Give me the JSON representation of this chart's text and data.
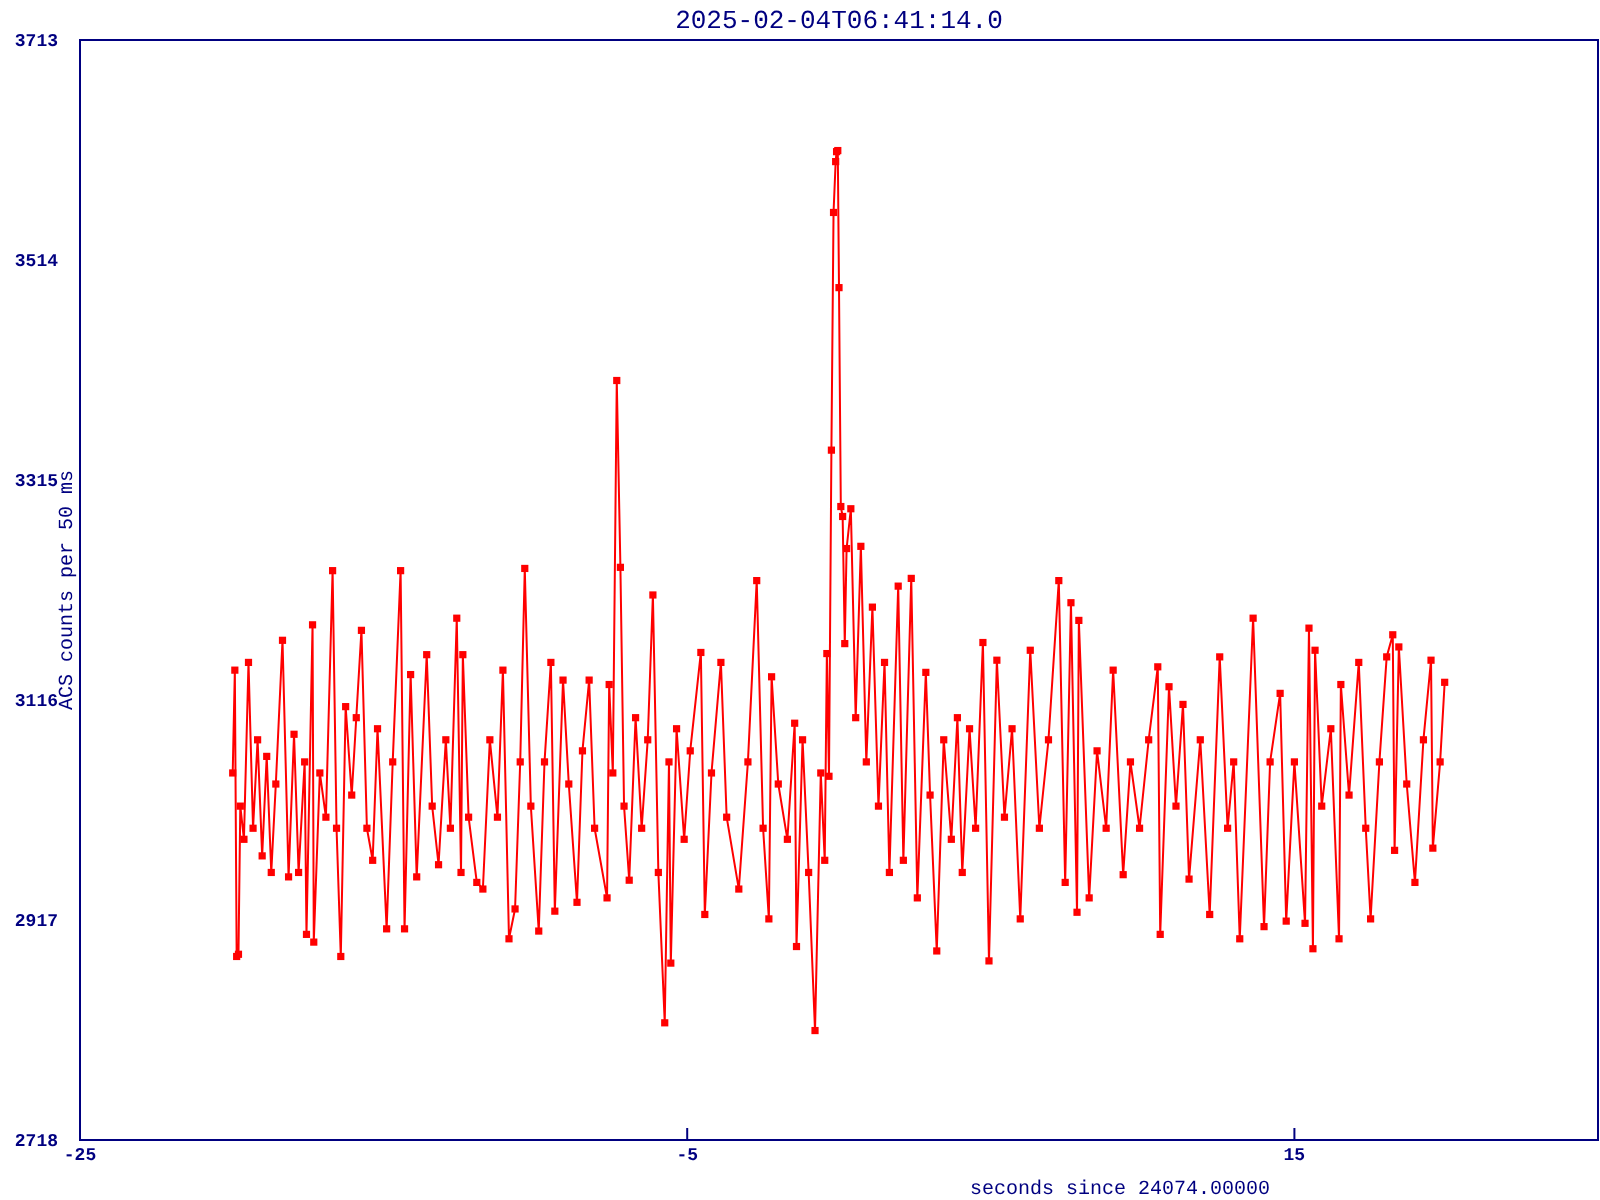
{
  "chart_data": {
    "type": "line",
    "title": "2025-02-04T06:41:14.0",
    "xlabel": "seconds since 24074.00000",
    "ylabel": "ACS counts per 50 ms",
    "xlim": [
      -25,
      25
    ],
    "ylim": [
      2718,
      3713
    ],
    "xticks": [
      -25,
      -5,
      15
    ],
    "yticks": [
      2718,
      2917,
      3116,
      3315,
      3514,
      3713
    ],
    "marker": "square",
    "line_style": "solid",
    "x": [
      -19.97,
      -19.9,
      -19.84,
      -19.78,
      -19.72,
      -19.6,
      -19.45,
      -19.3,
      -19.15,
      -19.0,
      -18.85,
      -18.7,
      -18.55,
      -18.33,
      -18.13,
      -17.95,
      -17.8,
      -17.6,
      -17.54,
      -17.34,
      -17.3,
      -17.1,
      -16.9,
      -16.68,
      -16.55,
      -16.41,
      -16.25,
      -16.05,
      -15.9,
      -15.73,
      -15.55,
      -15.36,
      -15.2,
      -14.9,
      -14.7,
      -14.44,
      -14.31,
      -14.11,
      -13.91,
      -13.58,
      -13.4,
      -13.19,
      -12.95,
      -12.8,
      -12.59,
      -12.45,
      -12.39,
      -12.2,
      -11.93,
      -11.73,
      -11.5,
      -11.25,
      -11.07,
      -10.87,
      -10.67,
      -10.5,
      -10.35,
      -10.15,
      -9.89,
      -9.7,
      -9.49,
      -9.36,
      -9.09,
      -8.9,
      -8.63,
      -8.45,
      -8.23,
      -8.05,
      -7.64,
      -7.57,
      -7.45,
      -7.32,
      -7.2,
      -7.08,
      -6.91,
      -6.7,
      -6.5,
      -6.3,
      -6.13,
      -5.95,
      -5.74,
      -5.6,
      -5.54,
      -5.35,
      -5.1,
      -4.9,
      -4.55,
      -4.42,
      -4.2,
      -3.89,
      -3.7,
      -3.3,
      -3.0,
      -2.71,
      -2.5,
      -2.31,
      -2.22,
      -2.0,
      -1.7,
      -1.46,
      -1.4,
      -1.2,
      -1.0,
      -0.79,
      -0.6,
      -0.47,
      -0.4,
      -0.33,
      -0.25,
      -0.18,
      -0.11,
      -0.08,
      -0.04,
      0.0,
      0.06,
      0.12,
      0.19,
      0.25,
      0.39,
      0.55,
      0.72,
      0.9,
      1.1,
      1.3,
      1.5,
      1.66,
      1.95,
      2.12,
      2.38,
      2.58,
      2.86,
      3.0,
      3.22,
      3.45,
      3.7,
      3.9,
      4.06,
      4.3,
      4.5,
      4.74,
      4.94,
      5.2,
      5.45,
      5.7,
      5.97,
      6.3,
      6.6,
      6.9,
      7.24,
      7.45,
      7.64,
      7.84,
      7.9,
      8.24,
      8.5,
      8.8,
      9.03,
      9.36,
      9.6,
      9.9,
      10.2,
      10.5,
      10.58,
      10.87,
      11.1,
      11.33,
      11.53,
      11.9,
      12.21,
      12.54,
      12.8,
      13.0,
      13.2,
      13.64,
      14.0,
      14.2,
      14.53,
      14.73,
      15.0,
      15.35,
      15.48,
      15.61,
      15.68,
      15.9,
      16.2,
      16.47,
      16.53,
      16.8,
      17.12,
      17.35,
      17.51,
      17.8,
      18.04,
      18.24,
      18.3,
      18.44,
      18.7,
      18.97,
      19.25,
      19.5,
      19.56,
      19.8,
      19.95
    ],
    "series": [
      {
        "color": "#ff0000",
        "values": [
          3050,
          3143,
          2884,
          2886,
          3020,
          2990,
          3150,
          3000,
          3080,
          2975,
          3065,
          2960,
          3040,
          3170,
          2956,
          3085,
          2960,
          3060,
          2904,
          3184,
          2897,
          3050,
          3010,
          3233,
          3000,
          2884,
          3110,
          3030,
          3100,
          3179,
          3000,
          2971,
          3090,
          2909,
          3060,
          3233,
          2909,
          3139,
          2956,
          3157,
          3020,
          2967,
          3080,
          3000,
          3190,
          2960,
          3157,
          3010,
          2951,
          2945,
          3080,
          3010,
          3143,
          2900,
          2927,
          3060,
          3235,
          3020,
          2907,
          3060,
          3150,
          2925,
          3134,
          3040,
          2933,
          3070,
          3134,
          3000,
          2937,
          3130,
          3050,
          3405,
          3236,
          3020,
          2953,
          3100,
          3000,
          3080,
          3211,
          2960,
          2824,
          3060,
          2878,
          3090,
          2990,
          3070,
          3159,
          2922,
          3050,
          3150,
          3010,
          2945,
          3060,
          3224,
          3000,
          2918,
          3137,
          3040,
          2990,
          3095,
          2893,
          3080,
          2960,
          2817,
          3050,
          2971,
          3158,
          3047,
          3342,
          3557,
          3603,
          3612,
          3613,
          3489,
          3291,
          3282,
          3167,
          3253,
          3289,
          3100,
          3255,
          3060,
          3200,
          3020,
          3150,
          2960,
          3219,
          2971,
          3226,
          2937,
          3141,
          3030,
          2889,
          3080,
          2990,
          3100,
          2960,
          3090,
          3000,
          3168,
          2880,
          3152,
          3010,
          3090,
          2918,
          3161,
          3000,
          3080,
          3224,
          2951,
          3204,
          2924,
          3188,
          2937,
          3070,
          3000,
          3143,
          2958,
          3060,
          3000,
          3080,
          3146,
          2904,
          3128,
          3020,
          3112,
          2954,
          3080,
          2922,
          3155,
          3000,
          3060,
          2900,
          3190,
          2911,
          3060,
          3122,
          2916,
          3060,
          2914,
          3181,
          2891,
          3161,
          3020,
          3090,
          2900,
          3130,
          3030,
          3150,
          3000,
          2918,
          3060,
          3155,
          3175,
          2980,
          3164,
          3040,
          2951,
          3080,
          3152,
          2982,
          3060,
          3132
        ]
      }
    ]
  }
}
